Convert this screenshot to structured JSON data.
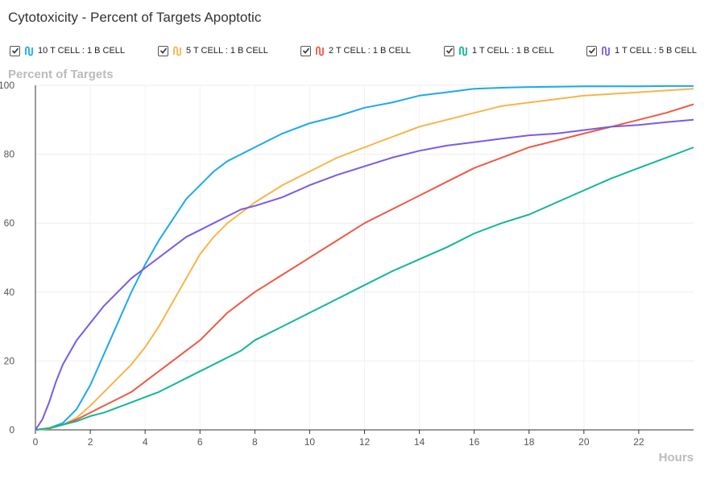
{
  "chart_data": {
    "type": "line",
    "title": "Cytotoxicity - Percent of Targets Apoptotic",
    "ylabel": "Percent of Targets",
    "xlabel": "Hours",
    "xlim": [
      0,
      24
    ],
    "ylim": [
      0,
      100
    ],
    "x_ticks": [
      0,
      2,
      4,
      6,
      8,
      10,
      12,
      14,
      16,
      18,
      20,
      22
    ],
    "y_ticks": [
      0,
      20,
      40,
      60,
      80,
      100
    ],
    "grid": true,
    "legend_position": "top",
    "series": [
      {
        "name": "10 T CELL : 1 B CELL",
        "color": "#1ba9f0",
        "checked": true,
        "x": [
          0,
          0.5,
          1,
          1.5,
          2,
          2.5,
          3,
          3.5,
          4,
          4.5,
          5,
          5.5,
          6,
          6.5,
          7,
          7.5,
          8,
          9,
          10,
          11,
          12,
          13,
          14,
          15,
          16,
          17,
          18,
          19,
          20,
          21,
          22,
          23,
          24
        ],
        "y": [
          0,
          0.5,
          2,
          6,
          13,
          22,
          31,
          40,
          48,
          55,
          61,
          67,
          71,
          75,
          78,
          80,
          82,
          86,
          89,
          91,
          93.5,
          95,
          97,
          98,
          99,
          99.3,
          99.5,
          99.6,
          99.7,
          99.7,
          99.7,
          99.8,
          99.8
        ]
      },
      {
        "name": "5 T CELL : 1 B CELL",
        "color": "#f7b54a",
        "checked": true,
        "x": [
          0,
          0.5,
          1,
          1.5,
          2,
          2.5,
          3,
          3.5,
          4,
          4.5,
          5,
          5.5,
          6,
          6.5,
          7,
          7.5,
          8,
          9,
          10,
          11,
          12,
          13,
          14,
          15,
          16,
          17,
          18,
          19,
          20,
          21,
          22,
          23,
          24
        ],
        "y": [
          0,
          0.3,
          1.5,
          3.5,
          7,
          11,
          15,
          19,
          24,
          30,
          37,
          44,
          51,
          56,
          60,
          63,
          66,
          71,
          75,
          79,
          82,
          85,
          88,
          90,
          92,
          94,
          95,
          96,
          97,
          97.5,
          98,
          98.5,
          99
        ]
      },
      {
        "name": "2 T CELL : 1 B CELL",
        "color": "#ee5a45",
        "checked": true,
        "x": [
          0,
          0.5,
          1,
          1.5,
          2,
          2.5,
          3,
          3.5,
          4,
          4.5,
          5,
          5.5,
          6,
          6.5,
          7,
          7.5,
          8,
          9,
          10,
          11,
          12,
          13,
          14,
          15,
          16,
          17,
          18,
          19,
          20,
          21,
          22,
          23,
          24
        ],
        "y": [
          0,
          0.5,
          1.5,
          3,
          5,
          7,
          9,
          11,
          14,
          17,
          20,
          23,
          26,
          30,
          34,
          37,
          40,
          45,
          50,
          55,
          60,
          64,
          68,
          72,
          76,
          79,
          82,
          84,
          86,
          88,
          90,
          92,
          94.5
        ]
      },
      {
        "name": "1 T CELL : 1 B CELL",
        "color": "#12b796",
        "checked": true,
        "x": [
          0,
          0.5,
          1,
          1.5,
          2,
          2.5,
          3,
          3.5,
          4,
          4.5,
          5,
          5.5,
          6,
          6.5,
          7,
          7.5,
          8,
          9,
          10,
          11,
          12,
          13,
          14,
          15,
          16,
          17,
          18,
          19,
          20,
          21,
          22,
          23,
          24
        ],
        "y": [
          0,
          0.5,
          1.5,
          2.5,
          4,
          5,
          6.5,
          8,
          9.5,
          11,
          13,
          15,
          17,
          19,
          21,
          23,
          26,
          30,
          34,
          38,
          42,
          46,
          49.5,
          53,
          57,
          60,
          62.5,
          66,
          69.5,
          73,
          76,
          79,
          82
        ]
      },
      {
        "name": "1 T CELL : 5 B CELL",
        "color": "#7b5ae5",
        "checked": true,
        "x": [
          0,
          0.25,
          0.5,
          0.75,
          1,
          1.5,
          2,
          2.5,
          3,
          3.5,
          4,
          4.5,
          5,
          5.5,
          6,
          6.5,
          7,
          7.5,
          8,
          9,
          10,
          11,
          12,
          13,
          14,
          15,
          16,
          17,
          18,
          19,
          20,
          21,
          22,
          23,
          24
        ],
        "y": [
          0,
          3,
          8,
          14,
          19,
          26,
          31,
          36,
          40,
          44,
          47,
          50,
          53,
          56,
          58,
          60,
          62,
          64,
          65,
          67.5,
          71,
          74,
          76.5,
          79,
          81,
          82.5,
          83.5,
          84.5,
          85.5,
          86,
          87,
          88,
          88.5,
          89.3,
          90
        ]
      }
    ]
  }
}
